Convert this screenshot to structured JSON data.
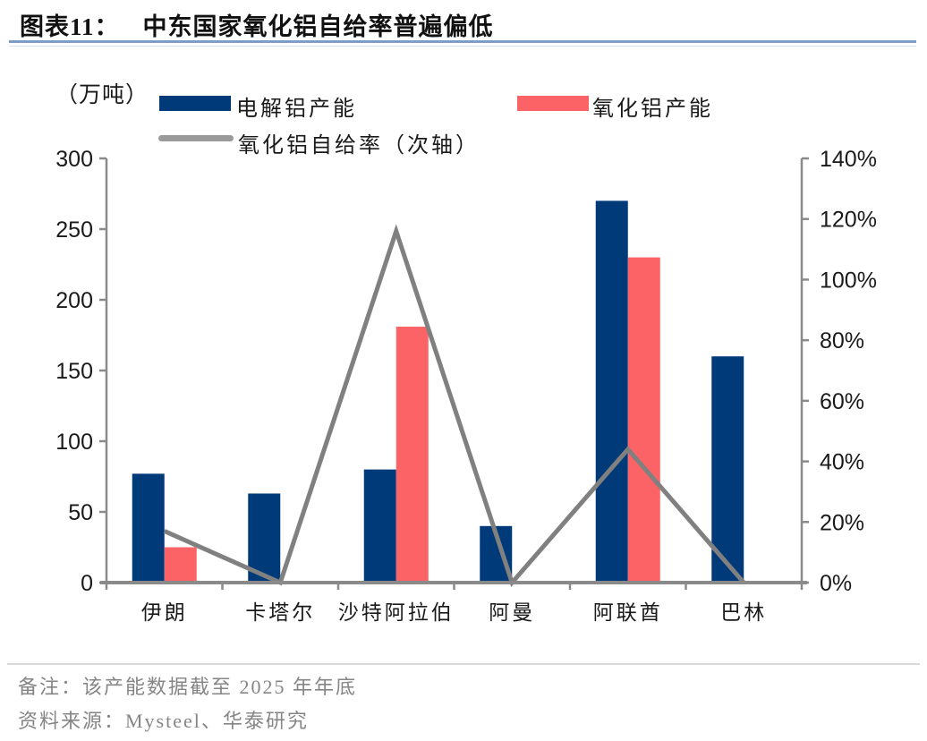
{
  "page": {
    "title_label": "图表11：",
    "title_text": "中东国家氧化铝自给率普遍偏低"
  },
  "legend": {
    "items": [
      {
        "label": "电解铝产能",
        "type": "bar",
        "color": "#003A78"
      },
      {
        "label": "氧化铝产能",
        "type": "bar",
        "color": "#FC6366"
      },
      {
        "label": "氧化铝自给率（次轴）",
        "type": "line",
        "color": "#9A9A9A"
      }
    ]
  },
  "chart_data": {
    "type": "bar",
    "subtype": "combo-bar-line-dual-axis",
    "title": "中东国家氧化铝自给率普遍偏低",
    "unit_label": "（万吨）",
    "categories": [
      "伊朗",
      "卡塔尔",
      "沙特阿拉伯",
      "阿曼",
      "阿联酋",
      "巴林"
    ],
    "series": [
      {
        "name": "电解铝产能",
        "type": "bar",
        "axis": "left",
        "color": "#003A78",
        "values": [
          77,
          63,
          80,
          40,
          270,
          160
        ]
      },
      {
        "name": "氧化铝产能",
        "type": "bar",
        "axis": "left",
        "color": "#FC6366",
        "values": [
          25,
          0,
          181,
          0,
          230,
          0
        ]
      },
      {
        "name": "氧化铝自给率（次轴）",
        "type": "line",
        "axis": "right",
        "color": "#808080",
        "values": [
          17,
          0,
          116,
          0,
          44,
          0
        ]
      }
    ],
    "left_axis": {
      "min": 0,
      "max": 300,
      "ticks": [
        0,
        50,
        100,
        150,
        200,
        250,
        300
      ],
      "tick_labels": [
        "0",
        "50",
        "100",
        "150",
        "200",
        "250",
        "300"
      ]
    },
    "right_axis": {
      "min": 0,
      "max": 140,
      "ticks": [
        0,
        20,
        40,
        60,
        80,
        100,
        120,
        140
      ],
      "tick_labels": [
        "0%",
        "20%",
        "40%",
        "60%",
        "80%",
        "100%",
        "120%",
        "140%"
      ]
    },
    "grid": false,
    "legend_position": "top",
    "axis_color": "#8A8A8A",
    "tick_label_color": "#1A1A1A"
  },
  "footer": {
    "note": "备注：该产能数据截至 2025 年年底",
    "source": "资料来源：Mysteel、华泰研究"
  },
  "colors": {
    "electrolytic_bar": "#003A78",
    "alumina_bar": "#FC6366",
    "self_sufficiency_line": "#808080",
    "title_underline": "#7E9CC4",
    "footer_text": "#858585"
  }
}
